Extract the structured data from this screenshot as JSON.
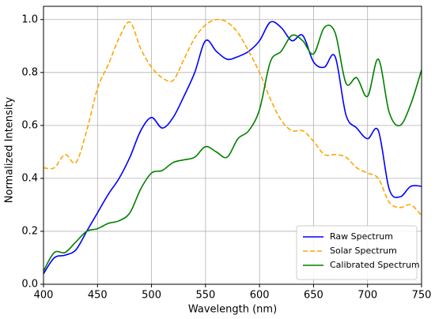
{
  "chart_data": {
    "type": "line",
    "xlabel": "Wavelength (nm)",
    "ylabel": "Normalized Intensity",
    "x": [
      400,
      410,
      420,
      430,
      440,
      450,
      460,
      470,
      480,
      490,
      500,
      510,
      520,
      530,
      540,
      550,
      560,
      570,
      580,
      590,
      600,
      610,
      620,
      630,
      640,
      650,
      660,
      670,
      680,
      690,
      700,
      710,
      720,
      730,
      740,
      750
    ],
    "series": [
      {
        "name": "Raw Spectrum",
        "color": "#0000ff",
        "dash": false,
        "values": [
          0.04,
          0.1,
          0.11,
          0.13,
          0.2,
          0.27,
          0.34,
          0.4,
          0.48,
          0.58,
          0.63,
          0.59,
          0.63,
          0.71,
          0.8,
          0.92,
          0.88,
          0.85,
          0.86,
          0.88,
          0.92,
          0.99,
          0.97,
          0.92,
          0.94,
          0.84,
          0.82,
          0.86,
          0.64,
          0.59,
          0.55,
          0.58,
          0.36,
          0.33,
          0.37,
          0.37
        ]
      },
      {
        "name": "Solar Spectrum",
        "color": "#ffa500",
        "dash": true,
        "values": [
          0.44,
          0.44,
          0.49,
          0.46,
          0.58,
          0.74,
          0.83,
          0.93,
          0.99,
          0.89,
          0.82,
          0.78,
          0.77,
          0.85,
          0.93,
          0.98,
          1.0,
          0.99,
          0.95,
          0.88,
          0.8,
          0.7,
          0.62,
          0.58,
          0.58,
          0.54,
          0.49,
          0.49,
          0.48,
          0.44,
          0.42,
          0.4,
          0.31,
          0.29,
          0.3,
          0.26
        ]
      },
      {
        "name": "Calibrated Spectrum",
        "color": "#008000",
        "dash": false,
        "values": [
          0.05,
          0.12,
          0.12,
          0.16,
          0.2,
          0.21,
          0.23,
          0.24,
          0.27,
          0.36,
          0.42,
          0.43,
          0.46,
          0.47,
          0.48,
          0.52,
          0.5,
          0.48,
          0.55,
          0.58,
          0.66,
          0.84,
          0.88,
          0.94,
          0.92,
          0.87,
          0.97,
          0.95,
          0.76,
          0.78,
          0.71,
          0.85,
          0.65,
          0.6,
          0.68,
          0.81
        ]
      }
    ],
    "xlim": [
      400,
      750
    ],
    "xticks": [
      400,
      450,
      500,
      550,
      600,
      650,
      700,
      750
    ],
    "ylim": [
      0,
      1.05
    ],
    "yticks": [
      {
        "value": 0,
        "label": "0.0"
      },
      0.2,
      0.4,
      0.6,
      0.8,
      {
        "value": 1,
        "label": "1.0"
      }
    ],
    "grid": true,
    "legend": "lower right"
  }
}
